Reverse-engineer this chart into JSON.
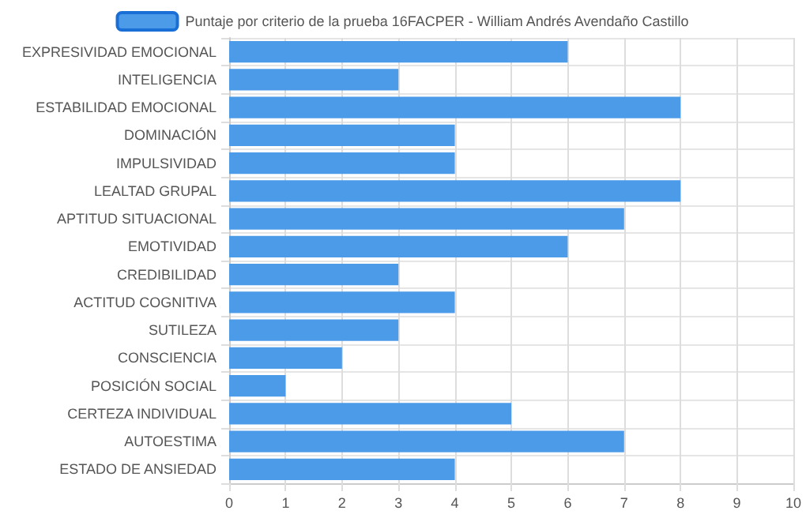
{
  "chart_data": {
    "type": "bar",
    "orientation": "horizontal",
    "categories": [
      "EXPRESIVIDAD EMOCIONAL",
      "INTELIGENCIA",
      "ESTABILIDAD EMOCIONAL",
      "DOMINACIÓN",
      "IMPULSIVIDAD",
      "LEALTAD GRUPAL",
      "APTITUD SITUACIONAL",
      "EMOTIVIDAD",
      "CREDIBILIDAD",
      "ACTITUD COGNITIVA",
      "SUTILEZA",
      "CONSCIENCIA",
      "POSICIÓN SOCIAL",
      "CERTEZA INDIVIDUAL",
      "AUTOESTIMA",
      "ESTADO DE ANSIEDAD"
    ],
    "series": [
      {
        "name": "Puntaje por criterio de la prueba 16FACPER - William Andrés Avendaño Castillo",
        "color": "#4c9be8",
        "values": [
          6,
          3,
          8,
          4,
          4,
          8,
          7,
          6,
          3,
          4,
          3,
          2,
          1,
          5,
          7,
          4
        ]
      }
    ],
    "xlim": [
      0,
      10
    ],
    "xticks": [
      0,
      1,
      2,
      3,
      4,
      5,
      6,
      7,
      8,
      9,
      10
    ],
    "grid": true,
    "legend": "top"
  }
}
